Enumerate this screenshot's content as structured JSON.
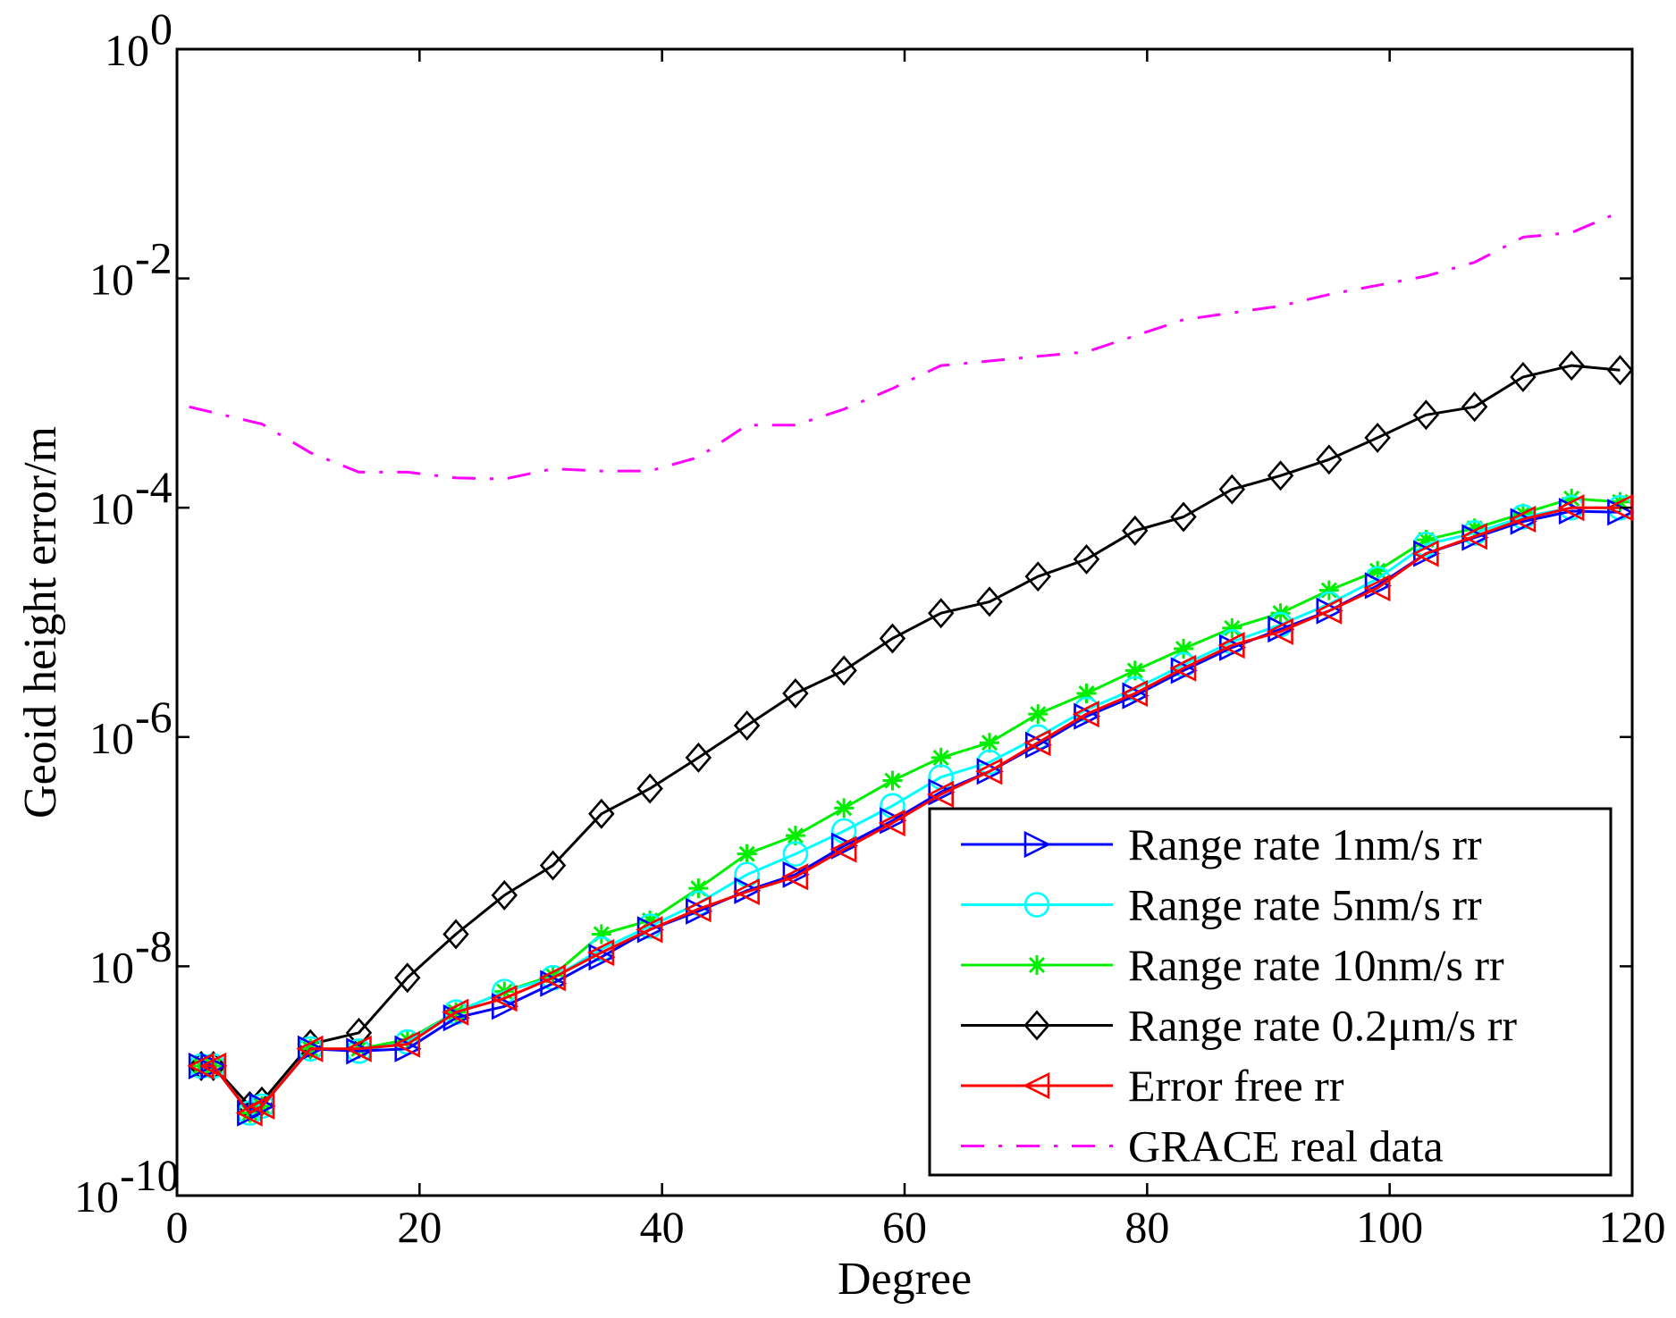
{
  "chart_data": {
    "type": "line",
    "title": "",
    "xlabel": "Degree",
    "ylabel": "Geoid height error/m",
    "xlim": [
      0,
      120
    ],
    "ylim_log10": [
      -10,
      0
    ],
    "yscale": "log",
    "x_ticks": [
      0,
      20,
      40,
      60,
      80,
      100,
      120
    ],
    "y_ticks": [
      {
        "base": "10",
        "exp": "0"
      },
      {
        "base": "10",
        "exp": "-2"
      },
      {
        "base": "10",
        "exp": "-4"
      },
      {
        "base": "10",
        "exp": "-6"
      },
      {
        "base": "10",
        "exp": "-8"
      },
      {
        "base": "10",
        "exp": "-10"
      }
    ],
    "grid": false,
    "legend_position": "bottom-right",
    "x": [
      2,
      3,
      6,
      7,
      11,
      15,
      19,
      23,
      27,
      31,
      35,
      39,
      43,
      47,
      51,
      55,
      59,
      63,
      67,
      71,
      75,
      79,
      83,
      87,
      91,
      95,
      99,
      103,
      107,
      111,
      115,
      119
    ],
    "series": [
      {
        "name": "Range rate 1nm/s rr",
        "color": "#0000ff",
        "marker": "triangle-right",
        "line": "solid",
        "log10_values": [
          -8.87,
          -8.87,
          -9.28,
          -9.22,
          -8.72,
          -8.74,
          -8.72,
          -8.45,
          -8.35,
          -8.15,
          -7.92,
          -7.68,
          -7.52,
          -7.34,
          -7.2,
          -6.95,
          -6.73,
          -6.48,
          -6.3,
          -6.07,
          -5.82,
          -5.64,
          -5.42,
          -5.22,
          -5.06,
          -4.9,
          -4.68,
          -4.4,
          -4.26,
          -4.12,
          -4.03,
          -4.04
        ]
      },
      {
        "name": "Range rate 5nm/s rr",
        "color": "#00ffff",
        "marker": "circle",
        "line": "solid",
        "log10_values": [
          -8.87,
          -8.87,
          -9.28,
          -9.22,
          -8.72,
          -8.74,
          -8.66,
          -8.4,
          -8.22,
          -8.1,
          -7.85,
          -7.65,
          -7.45,
          -7.2,
          -7.02,
          -6.82,
          -6.6,
          -6.35,
          -6.22,
          -6.0,
          -5.76,
          -5.58,
          -5.37,
          -5.17,
          -5.02,
          -4.84,
          -4.62,
          -4.32,
          -4.22,
          -4.08,
          -4.0,
          -4.0
        ]
      },
      {
        "name": "Range rate 10nm/s rr",
        "color": "#00ee00",
        "marker": "asterisk",
        "line": "solid",
        "log10_values": [
          -8.87,
          -8.87,
          -9.28,
          -9.22,
          -8.72,
          -8.72,
          -8.64,
          -8.4,
          -8.22,
          -8.08,
          -7.72,
          -7.6,
          -7.32,
          -7.02,
          -6.86,
          -6.62,
          -6.38,
          -6.18,
          -6.05,
          -5.8,
          -5.62,
          -5.42,
          -5.23,
          -5.05,
          -4.92,
          -4.72,
          -4.55,
          -4.28,
          -4.18,
          -4.05,
          -3.92,
          -3.95
        ]
      },
      {
        "name": "Range rate 0.2μm/s rr",
        "color": "#000000",
        "marker": "diamond",
        "line": "solid",
        "log10_values": [
          -8.87,
          -8.87,
          -9.22,
          -9.18,
          -8.68,
          -8.58,
          -8.1,
          -7.72,
          -7.38,
          -7.12,
          -6.67,
          -6.45,
          -6.18,
          -5.9,
          -5.62,
          -5.42,
          -5.14,
          -4.92,
          -4.82,
          -4.6,
          -4.45,
          -4.2,
          -4.08,
          -3.84,
          -3.72,
          -3.58,
          -3.39,
          -3.19,
          -3.12,
          -2.86,
          -2.76,
          -2.8
        ]
      },
      {
        "name": "Error free rr",
        "color": "#ff0000",
        "marker": "triangle-left",
        "line": "solid",
        "log10_values": [
          -8.87,
          -8.87,
          -9.28,
          -9.22,
          -8.72,
          -8.72,
          -8.68,
          -8.4,
          -8.28,
          -8.1,
          -7.88,
          -7.68,
          -7.5,
          -7.35,
          -7.22,
          -6.98,
          -6.75,
          -6.5,
          -6.3,
          -6.05,
          -5.8,
          -5.62,
          -5.4,
          -5.2,
          -5.08,
          -4.9,
          -4.7,
          -4.4,
          -4.25,
          -4.1,
          -4.0,
          -4.0
        ]
      },
      {
        "name": "GRACE real data",
        "color": "#ff00ff",
        "marker": "none",
        "line": "dashdot",
        "x": [
          1,
          7,
          11,
          15,
          19,
          23,
          27,
          31,
          35,
          39,
          43,
          47,
          51,
          55,
          59,
          63,
          67,
          71,
          75,
          79,
          83,
          87,
          91,
          95,
          99,
          103,
          107,
          111,
          115,
          119
        ],
        "log10_values": [
          -3.12,
          -3.27,
          -3.52,
          -3.69,
          -3.69,
          -3.74,
          -3.75,
          -3.66,
          -3.68,
          -3.68,
          -3.56,
          -3.28,
          -3.28,
          -3.14,
          -2.96,
          -2.76,
          -2.72,
          -2.68,
          -2.64,
          -2.5,
          -2.36,
          -2.3,
          -2.24,
          -2.14,
          -2.06,
          -1.98,
          -1.86,
          -1.64,
          -1.6,
          -1.42
        ]
      }
    ]
  }
}
